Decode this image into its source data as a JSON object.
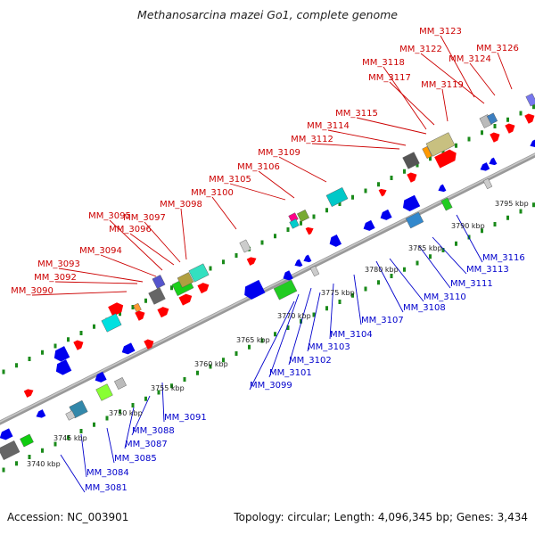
{
  "title": "Methanosarcina mazei Go1, complete genome",
  "footer": {
    "accession": "Accession: NC_003901",
    "summary": "Topology: circular; Length: 4,096,345 bp; Genes: 3,434"
  },
  "colors": {
    "label_top": "#cc0000",
    "label_bottom": "#0000cc",
    "backbone": "#888888",
    "tick_green": "#1a8a1a",
    "forward_gene": "#ff0000",
    "reverse_gene": "#0000ee"
  },
  "scale_labels": [
    {
      "text": "3740 kbp",
      "kbp": 3740
    },
    {
      "text": "3745 kbp",
      "kbp": 3745
    },
    {
      "text": "3750 kbp",
      "kbp": 3750
    },
    {
      "text": "3755 kbp",
      "kbp": 3755
    },
    {
      "text": "3760 kbp",
      "kbp": 3760
    },
    {
      "text": "3765 kbp",
      "kbp": 3765
    },
    {
      "text": "3770 kbp",
      "kbp": 3770
    },
    {
      "text": "3775 kbp",
      "kbp": 3775
    },
    {
      "text": "3780 kbp",
      "kbp": 3780
    },
    {
      "text": "3785 kbp",
      "kbp": 3785
    },
    {
      "text": "3790 kbp",
      "kbp": 3790
    },
    {
      "text": "3795 kbp",
      "kbp": 3795
    }
  ],
  "genes_top": [
    {
      "label": "MM_3090"
    },
    {
      "label": "MM_3092"
    },
    {
      "label": "MM_3093"
    },
    {
      "label": "MM_3094"
    },
    {
      "label": "MM_3095"
    },
    {
      "label": "MM_3096"
    },
    {
      "label": "MM_3097"
    },
    {
      "label": "MM_3098"
    },
    {
      "label": "MM_3100"
    },
    {
      "label": "MM_3105"
    },
    {
      "label": "MM_3106"
    },
    {
      "label": "MM_3109"
    },
    {
      "label": "MM_3112"
    },
    {
      "label": "MM_3114"
    },
    {
      "label": "MM_3115"
    },
    {
      "label": "MM_3117"
    },
    {
      "label": "MM_3118"
    },
    {
      "label": "MM_3119"
    },
    {
      "label": "MM_3122"
    },
    {
      "label": "MM_3123"
    },
    {
      "label": "MM_3124"
    },
    {
      "label": "MM_3126"
    }
  ],
  "genes_bottom": [
    {
      "label": "MM_3081"
    },
    {
      "label": "MM_3084"
    },
    {
      "label": "MM_3085"
    },
    {
      "label": "MM_3087"
    },
    {
      "label": "MM_3088"
    },
    {
      "label": "MM_3091"
    },
    {
      "label": "MM_3099"
    },
    {
      "label": "MM_3101"
    },
    {
      "label": "MM_3102"
    },
    {
      "label": "MM_3103"
    },
    {
      "label": "MM_3104"
    },
    {
      "label": "MM_3107"
    },
    {
      "label": "MM_3108"
    },
    {
      "label": "MM_3110"
    },
    {
      "label": "MM_3111"
    },
    {
      "label": "MM_3113"
    },
    {
      "label": "MM_3116"
    }
  ]
}
